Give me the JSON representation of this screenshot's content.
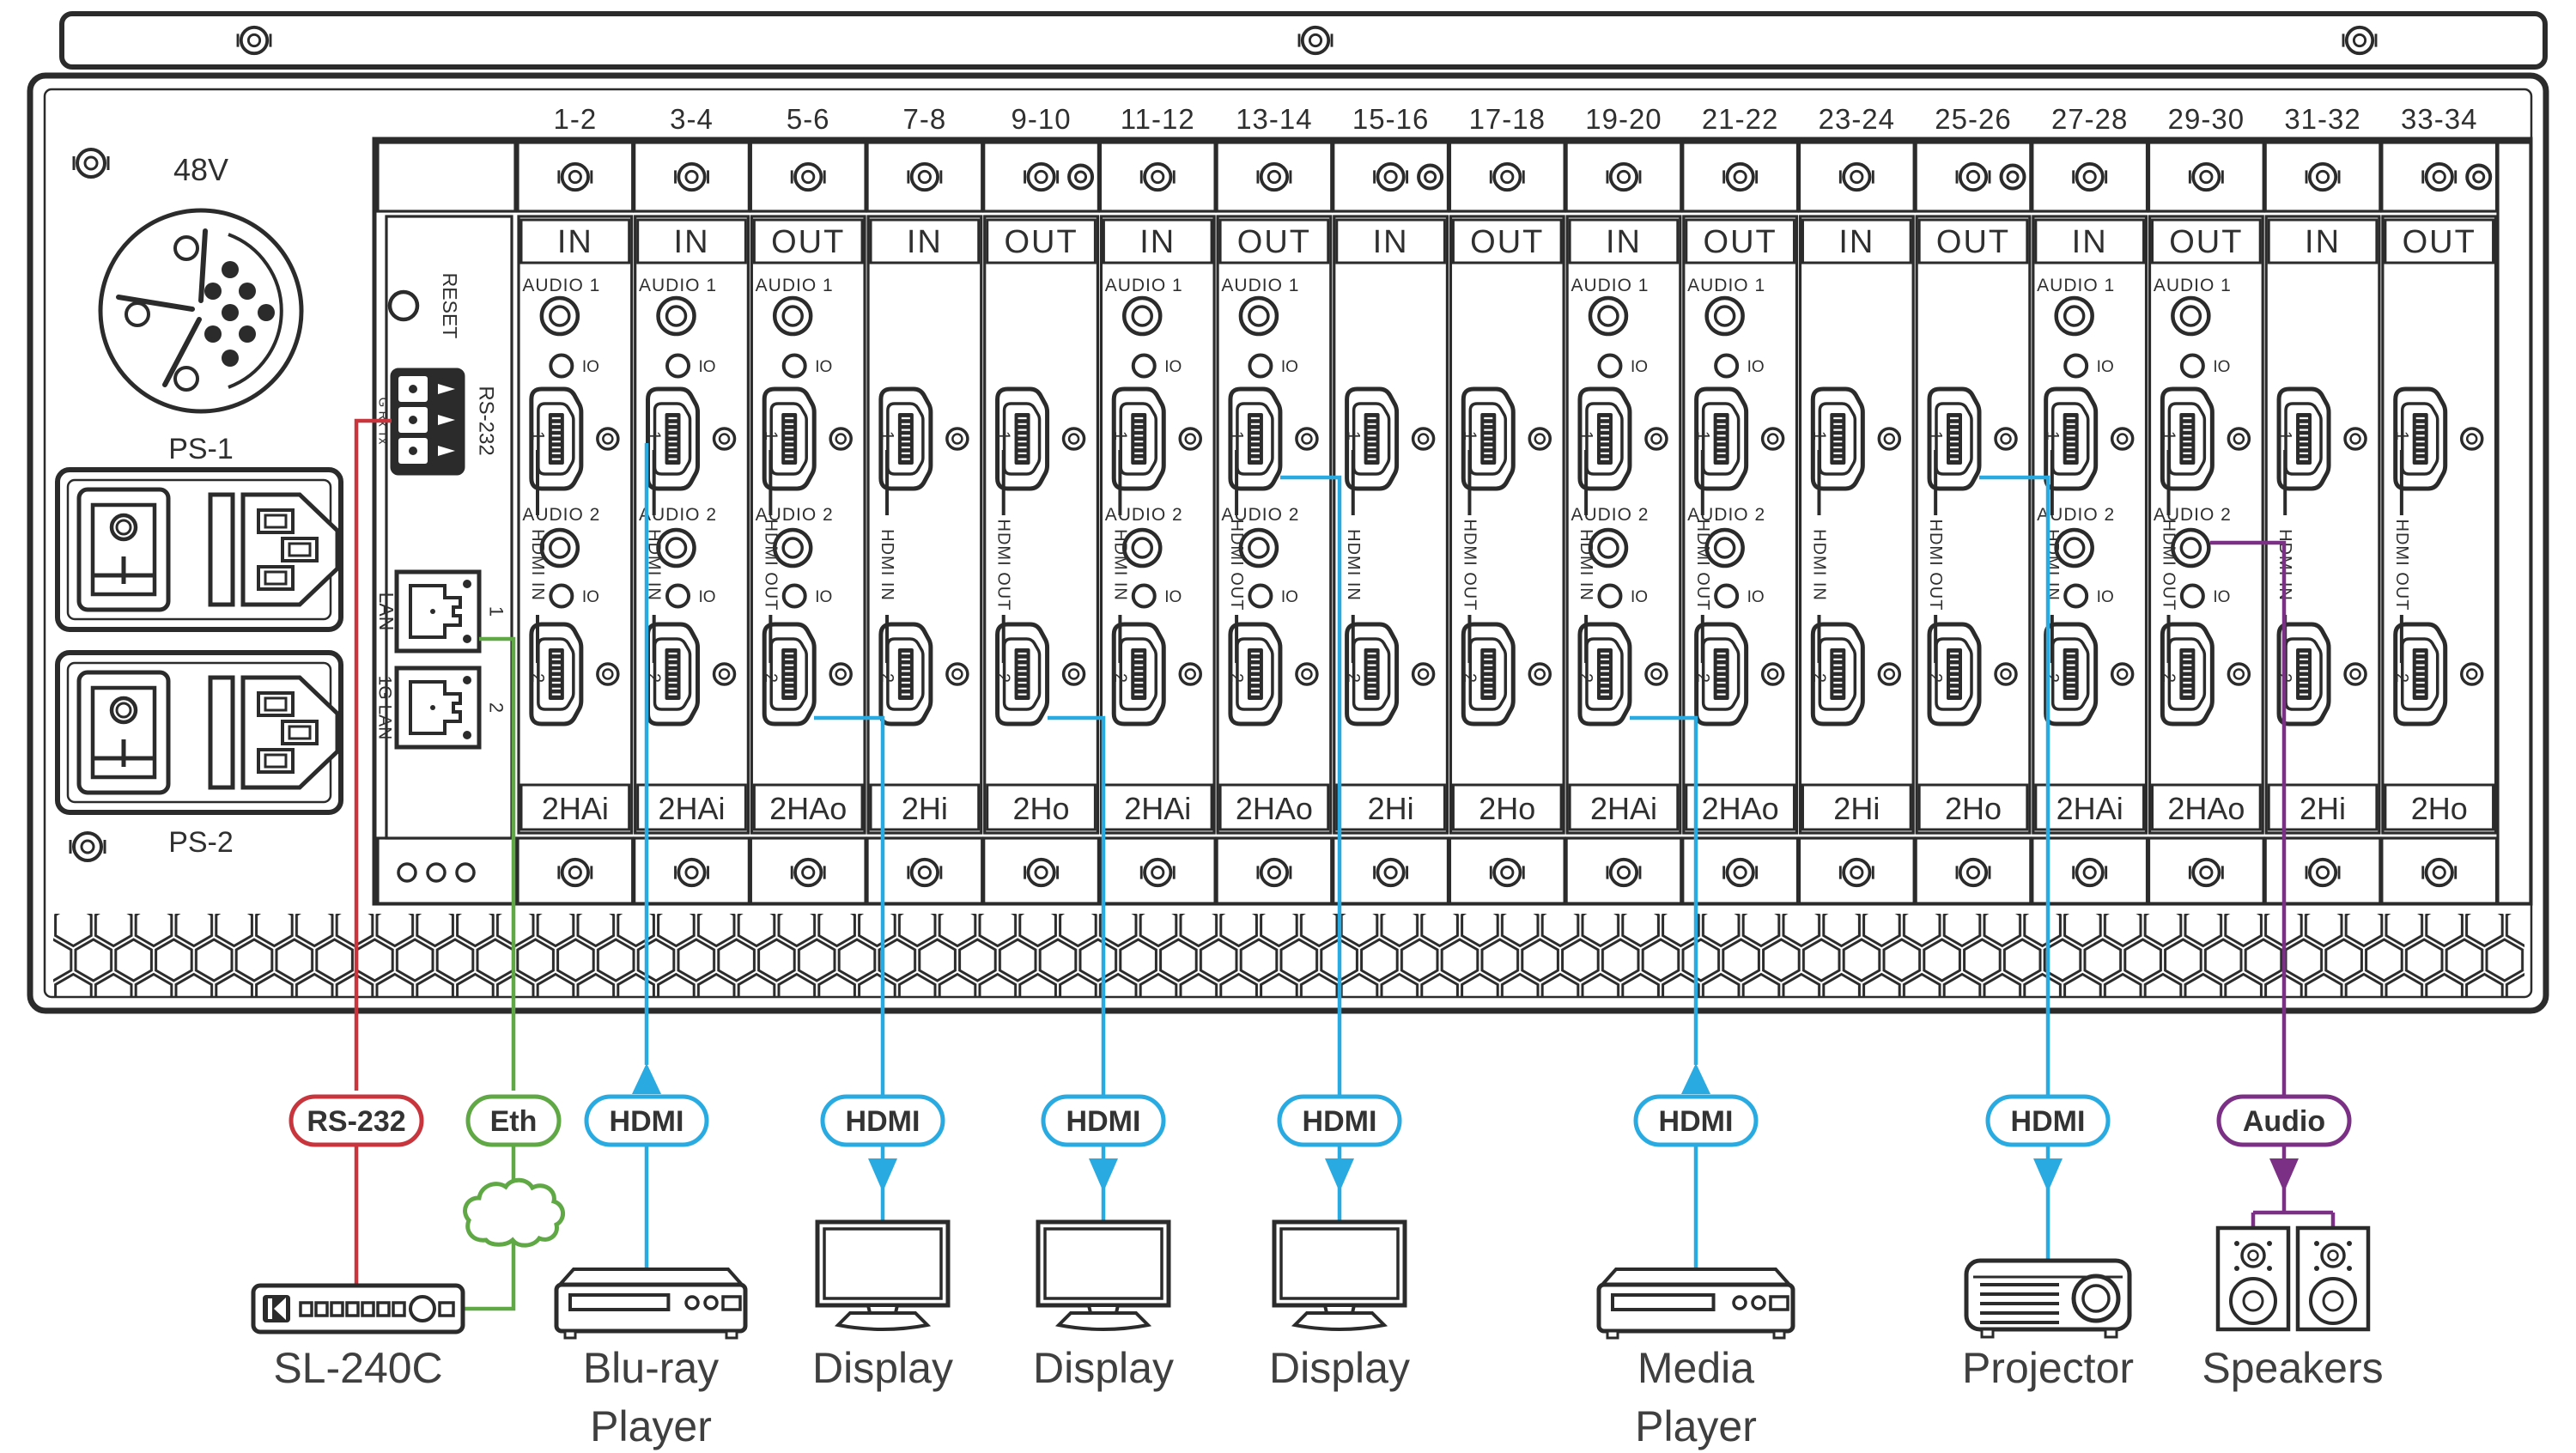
{
  "colors": {
    "line": "#2b2b2b",
    "panel_text": "#2f2f2f",
    "device_text": "#3f3f3f",
    "rs232": "#c9353c",
    "ethernet": "#5fa845",
    "hdmi": "#29abe2",
    "audio": "#7c3085"
  },
  "panel": {
    "power": {
      "dc_label": "48V",
      "ps1_label": "PS-1",
      "ps2_label": "PS-2"
    },
    "control": {
      "reset_label": "RESET",
      "rs232_label": "RS-232",
      "rs232_pins_label": "G Rx Tx",
      "lan_label": "LAN",
      "lan_port": "1",
      "gig_lan_label": "1G LAN",
      "gig_lan_port": "2"
    },
    "card_common": {
      "audio1": "AUDIO 1",
      "audio2": "AUDIO 2",
      "io": "IO",
      "port1": "1",
      "port2": "2",
      "hdmi_in": "HDMI IN",
      "hdmi_out": "HDMI OUT"
    },
    "slots": [
      {
        "number": "1-2",
        "direction": "IN",
        "model": "2HAi",
        "audio": true
      },
      {
        "number": "3-4",
        "direction": "IN",
        "model": "2HAi",
        "audio": true
      },
      {
        "number": "5-6",
        "direction": "OUT",
        "model": "2HAo",
        "audio": true
      },
      {
        "number": "7-8",
        "direction": "IN",
        "model": "2Hi",
        "audio": false
      },
      {
        "number": "9-10",
        "direction": "OUT",
        "model": "2Ho",
        "audio": false
      },
      {
        "number": "11-12",
        "direction": "IN",
        "model": "2HAi",
        "audio": true
      },
      {
        "number": "13-14",
        "direction": "OUT",
        "model": "2HAo",
        "audio": true
      },
      {
        "number": "15-16",
        "direction": "IN",
        "model": "2Hi",
        "audio": false
      },
      {
        "number": "17-18",
        "direction": "OUT",
        "model": "2Ho",
        "audio": false
      },
      {
        "number": "19-20",
        "direction": "IN",
        "model": "2HAi",
        "audio": true
      },
      {
        "number": "21-22",
        "direction": "OUT",
        "model": "2HAo",
        "audio": true
      },
      {
        "number": "23-24",
        "direction": "IN",
        "model": "2Hi",
        "audio": false
      },
      {
        "number": "25-26",
        "direction": "OUT",
        "model": "2Ho",
        "audio": false
      },
      {
        "number": "27-28",
        "direction": "IN",
        "model": "2HAi",
        "audio": true
      },
      {
        "number": "29-30",
        "direction": "OUT",
        "model": "2HAo",
        "audio": true
      },
      {
        "number": "31-32",
        "direction": "IN",
        "model": "2Hi",
        "audio": false
      },
      {
        "number": "33-34",
        "direction": "OUT",
        "model": "2Ho",
        "audio": false
      }
    ]
  },
  "connections": [
    {
      "id": "rs232",
      "tag": "RS-232",
      "color_key": "rs232",
      "from": "RS-232 port",
      "to": "SL-240C"
    },
    {
      "id": "eth",
      "tag": "Eth",
      "color_key": "ethernet",
      "from": "LAN 1 port",
      "to": "SL-240C"
    },
    {
      "id": "bluray",
      "tag": "HDMI",
      "color_key": "hdmi",
      "from": "Blu-ray Player",
      "to": "Slot 3-4 HDMI IN 1"
    },
    {
      "id": "display1",
      "tag": "HDMI",
      "color_key": "hdmi",
      "from": "Slot 5-6 HDMI OUT 2",
      "to": "Display"
    },
    {
      "id": "display2",
      "tag": "HDMI",
      "color_key": "hdmi",
      "from": "Slot 9-10 HDMI OUT 2",
      "to": "Display"
    },
    {
      "id": "display3",
      "tag": "HDMI",
      "color_key": "hdmi",
      "from": "Slot 13-14 HDMI OUT 1",
      "to": "Display"
    },
    {
      "id": "media",
      "tag": "HDMI",
      "color_key": "hdmi",
      "from": "Media Player",
      "to": "Slot 19-20 HDMI IN 2"
    },
    {
      "id": "projector",
      "tag": "HDMI",
      "color_key": "hdmi",
      "from": "Slot 25-26 HDMI OUT 1",
      "to": "Projector"
    },
    {
      "id": "audio",
      "tag": "Audio",
      "color_key": "audio",
      "from": "Slot 29-30 AUDIO 2",
      "to": "Speakers"
    }
  ],
  "devices": [
    {
      "id": "sl240c",
      "label_lines": [
        "SL-240C"
      ]
    },
    {
      "id": "bluray",
      "label_lines": [
        "Blu-ray",
        "Player"
      ]
    },
    {
      "id": "display1",
      "label_lines": [
        "Display"
      ]
    },
    {
      "id": "display2",
      "label_lines": [
        "Display"
      ]
    },
    {
      "id": "display3",
      "label_lines": [
        "Display"
      ]
    },
    {
      "id": "media",
      "label_lines": [
        "Media",
        "Player"
      ]
    },
    {
      "id": "projector",
      "label_lines": [
        "Projector"
      ]
    },
    {
      "id": "speakers",
      "label_lines": [
        "Speakers"
      ]
    }
  ]
}
